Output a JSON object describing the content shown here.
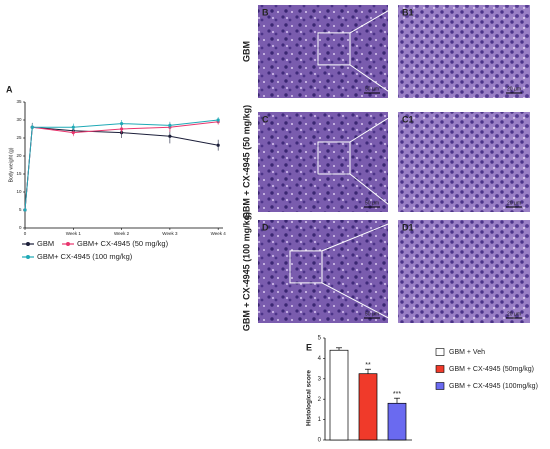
{
  "chart_data": [
    {
      "type": "line",
      "panel": "A",
      "ylabel": "Body weight (g)",
      "x": [
        0,
        0.15,
        1,
        2,
        3,
        4
      ],
      "xticks": [
        {
          "value": 0,
          "label": "0"
        },
        {
          "value": 1,
          "label": "Week 1"
        },
        {
          "value": 2,
          "label": "Week 2"
        },
        {
          "value": 3,
          "label": "Week 3"
        },
        {
          "value": 4,
          "label": "Week 4"
        }
      ],
      "xlim": [
        0,
        4.1
      ],
      "ylim": [
        0,
        35
      ],
      "yticks": [
        0,
        5,
        10,
        15,
        20,
        25,
        30,
        35
      ],
      "series": [
        {
          "name": "GBM",
          "color": "#1c1f3a",
          "values": [
            5,
            28,
            27,
            26.5,
            25.5,
            23
          ],
          "errors": [
            0,
            1.2,
            1.2,
            1.5,
            2,
            1.5
          ]
        },
        {
          "name": "GBM+ CX-4945 (50 mg/kg)",
          "color": "#e8356d",
          "values": [
            5,
            28,
            26.5,
            27.5,
            28,
            29.5
          ],
          "errors": [
            0,
            1,
            1,
            1.2,
            1.3,
            0.8
          ]
        },
        {
          "name": "GBM+ CX-4945 (100 mg/kg)",
          "color": "#1fa9b6",
          "values": [
            5,
            28,
            28,
            29,
            28.5,
            30
          ],
          "errors": [
            0,
            1,
            1,
            1,
            1,
            0.8
          ]
        }
      ]
    },
    {
      "type": "bar",
      "panel": "E",
      "ylabel": "Histological score",
      "categories": [
        "GBM + Veh",
        "GBM + CX-4945 (50mg/kg)",
        "GBM + CX-4945 (100mg/kg)"
      ],
      "values": [
        4.4,
        3.25,
        1.8
      ],
      "errors": [
        0.12,
        0.22,
        0.25
      ],
      "colors": [
        "#ffffff",
        "#f03a2a",
        "#6a6af0"
      ],
      "annotations": [
        null,
        "**",
        "***"
      ],
      "ylim": [
        0,
        5
      ],
      "yticks": [
        0,
        1,
        2,
        3,
        4,
        5
      ]
    }
  ],
  "images": {
    "rows": [
      {
        "label": "GBM",
        "left": "B",
        "right": "B1"
      },
      {
        "label": "GBM + CX-4945 (50 mg/kg)",
        "left": "C",
        "right": "C1"
      },
      {
        "label": "GBM + CX-4945 (100 mg/kg)",
        "left": "D",
        "right": "D1"
      }
    ],
    "scale_left": "50 μm",
    "scale_right": "20 μm"
  }
}
